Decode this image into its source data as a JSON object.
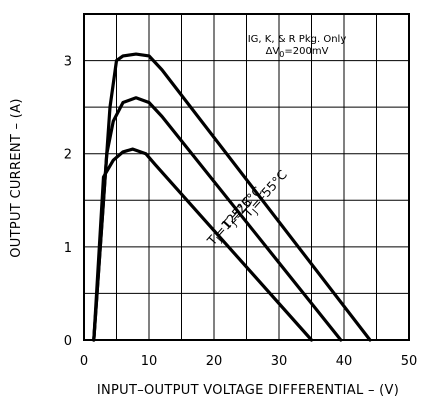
{
  "chart_data": {
    "type": "line",
    "title": "",
    "xlabel": "INPUT–OUTPUT VOLTAGE DIFFERENTIAL – (V)",
    "ylabel": "OUTPUT CURRENT – (A)",
    "xlim": [
      0,
      50
    ],
    "ylim": [
      0,
      3.5
    ],
    "xticks": [
      "0",
      "10",
      "20",
      "30",
      "40",
      "50"
    ],
    "yticks": [
      "0",
      "1",
      "2",
      "3"
    ],
    "grid": true,
    "annotation_line1": "IG, K, & R Pkg. Only",
    "annotation_line2": "ΔV",
    "annotation_line2_sub": "0",
    "annotation_line2_rest": "=200mV",
    "series": [
      {
        "name": "TJ=−55°C",
        "label_main": "T",
        "label_sub": "J",
        "label_rest": "=–55°C",
        "points": [
          [
            1.5,
            0
          ],
          [
            4,
            2.5
          ],
          [
            5,
            3.0
          ],
          [
            6,
            3.05
          ],
          [
            8,
            3.07
          ],
          [
            10,
            3.05
          ],
          [
            12,
            2.9
          ],
          [
            44,
            0
          ]
        ]
      },
      {
        "name": "TJ=25°C",
        "label_main": "T",
        "label_sub": "J",
        "label_rest": "=25°C",
        "points": [
          [
            1.5,
            0
          ],
          [
            3.5,
            2.0
          ],
          [
            4.5,
            2.35
          ],
          [
            6,
            2.55
          ],
          [
            8,
            2.6
          ],
          [
            10,
            2.55
          ],
          [
            12,
            2.4
          ],
          [
            39.5,
            0
          ]
        ]
      },
      {
        "name": "TJ=125°C",
        "label_main": "T",
        "label_sub": "J",
        "label_rest": "=125°C",
        "points": [
          [
            1.5,
            0
          ],
          [
            3,
            1.75
          ],
          [
            4.5,
            1.93
          ],
          [
            6,
            2.02
          ],
          [
            7.5,
            2.05
          ],
          [
            9.5,
            2.0
          ],
          [
            11,
            1.88
          ],
          [
            35,
            0
          ]
        ]
      }
    ]
  }
}
